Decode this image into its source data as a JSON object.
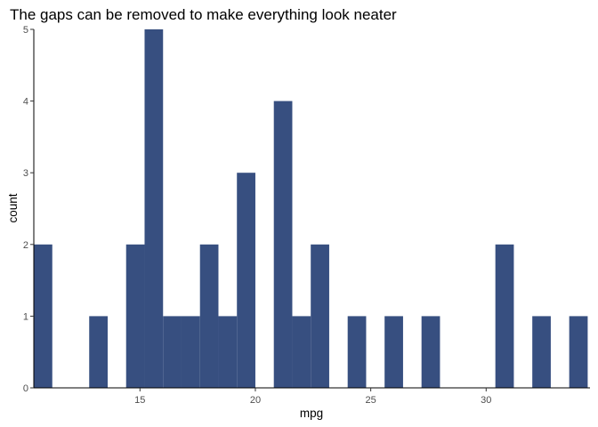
{
  "chart_data": {
    "type": "bar",
    "title": "The gaps can be removed to make everything look neater",
    "xlabel": "mpg",
    "ylabel": "count",
    "bar_color": "#374f80",
    "xlim": [
      10.4,
      34.5
    ],
    "ylim": [
      0,
      5
    ],
    "x_ticks": [
      15,
      20,
      25,
      30
    ],
    "y_ticks": [
      0,
      1,
      2,
      3,
      4,
      5
    ],
    "bins": [
      {
        "x0": 10.4,
        "x1": 11.2,
        "count": 2
      },
      {
        "x0": 11.2,
        "x1": 12.0,
        "count": 0
      },
      {
        "x0": 12.0,
        "x1": 12.8,
        "count": 0
      },
      {
        "x0": 12.8,
        "x1": 13.6,
        "count": 1
      },
      {
        "x0": 13.6,
        "x1": 14.4,
        "count": 0
      },
      {
        "x0": 14.4,
        "x1": 15.2,
        "count": 2
      },
      {
        "x0": 15.2,
        "x1": 16.0,
        "count": 5
      },
      {
        "x0": 16.0,
        "x1": 16.8,
        "count": 1
      },
      {
        "x0": 16.8,
        "x1": 17.6,
        "count": 1
      },
      {
        "x0": 17.6,
        "x1": 18.4,
        "count": 2
      },
      {
        "x0": 18.4,
        "x1": 19.2,
        "count": 1
      },
      {
        "x0": 19.2,
        "x1": 20.0,
        "count": 3
      },
      {
        "x0": 20.0,
        "x1": 20.8,
        "count": 0
      },
      {
        "x0": 20.8,
        "x1": 21.6,
        "count": 4
      },
      {
        "x0": 21.6,
        "x1": 22.4,
        "count": 1
      },
      {
        "x0": 22.4,
        "x1": 23.2,
        "count": 2
      },
      {
        "x0": 23.2,
        "x1": 24.0,
        "count": 0
      },
      {
        "x0": 24.0,
        "x1": 24.8,
        "count": 1
      },
      {
        "x0": 24.8,
        "x1": 25.6,
        "count": 0
      },
      {
        "x0": 25.6,
        "x1": 26.4,
        "count": 1
      },
      {
        "x0": 26.4,
        "x1": 27.2,
        "count": 0
      },
      {
        "x0": 27.2,
        "x1": 28.0,
        "count": 1
      },
      {
        "x0": 28.0,
        "x1": 28.8,
        "count": 0
      },
      {
        "x0": 28.8,
        "x1": 29.6,
        "count": 0
      },
      {
        "x0": 29.6,
        "x1": 30.4,
        "count": 0
      },
      {
        "x0": 30.4,
        "x1": 31.2,
        "count": 2
      },
      {
        "x0": 31.2,
        "x1": 32.0,
        "count": 0
      },
      {
        "x0": 32.0,
        "x1": 32.8,
        "count": 1
      },
      {
        "x0": 32.8,
        "x1": 33.6,
        "count": 0
      },
      {
        "x0": 33.6,
        "x1": 34.4,
        "count": 1
      }
    ]
  }
}
